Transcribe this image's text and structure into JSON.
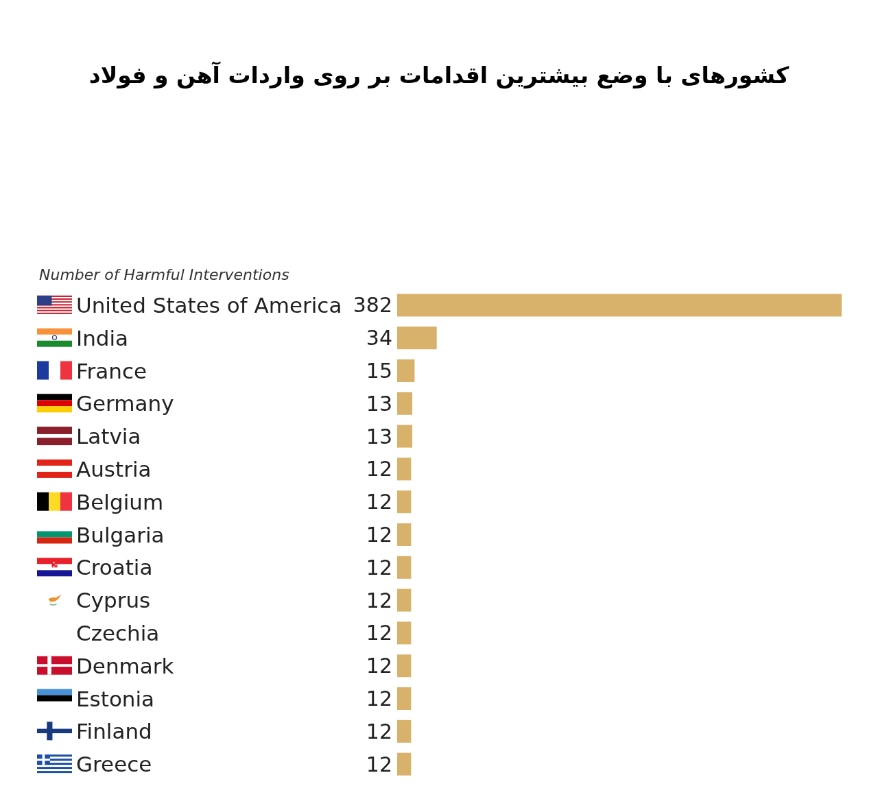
{
  "chart_data": {
    "type": "bar",
    "orientation": "horizontal",
    "title": "کشورهای با وضع بیشترین اقدامات بر روی واردات آهن و فولاد",
    "xlabel": "Number of Harmful Interventions",
    "categories": [
      "United States of America",
      "India",
      "France",
      "Germany",
      "Latvia",
      "Austria",
      "Belgium",
      "Bulgaria",
      "Croatia",
      "Cyprus",
      "Czechia",
      "Denmark",
      "Estonia",
      "Finland",
      "Greece"
    ],
    "values": [
      382,
      34,
      15,
      13,
      13,
      12,
      12,
      12,
      12,
      12,
      12,
      12,
      12,
      12,
      12
    ],
    "color": "#d8b26a",
    "data_labels": true,
    "tick_labels": "y"
  }
}
